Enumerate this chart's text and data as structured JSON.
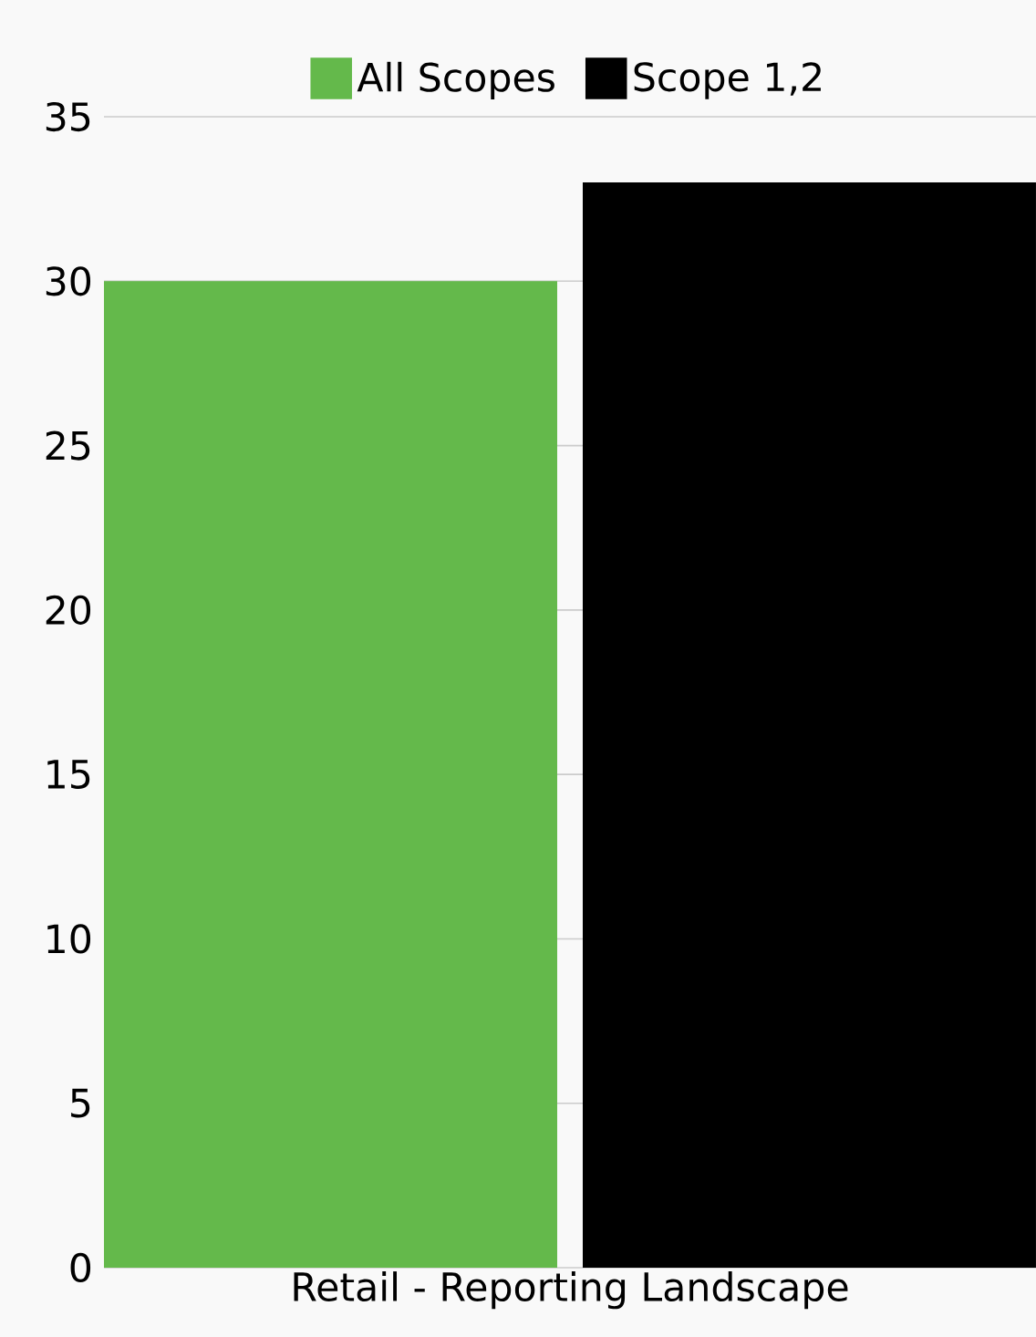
{
  "chart_data": {
    "type": "bar",
    "categories": [
      "Retail - Reporting Landscape"
    ],
    "series": [
      {
        "name": "All Scopes",
        "color": "#64b94b",
        "values": [
          30
        ]
      },
      {
        "name": "Scope 1,2",
        "color": "#000000",
        "values": [
          33
        ]
      }
    ],
    "ylim": [
      0,
      35
    ],
    "yticks": [
      0,
      5,
      10,
      15,
      20,
      25,
      30,
      35
    ],
    "grid": "y",
    "legend": "top"
  }
}
